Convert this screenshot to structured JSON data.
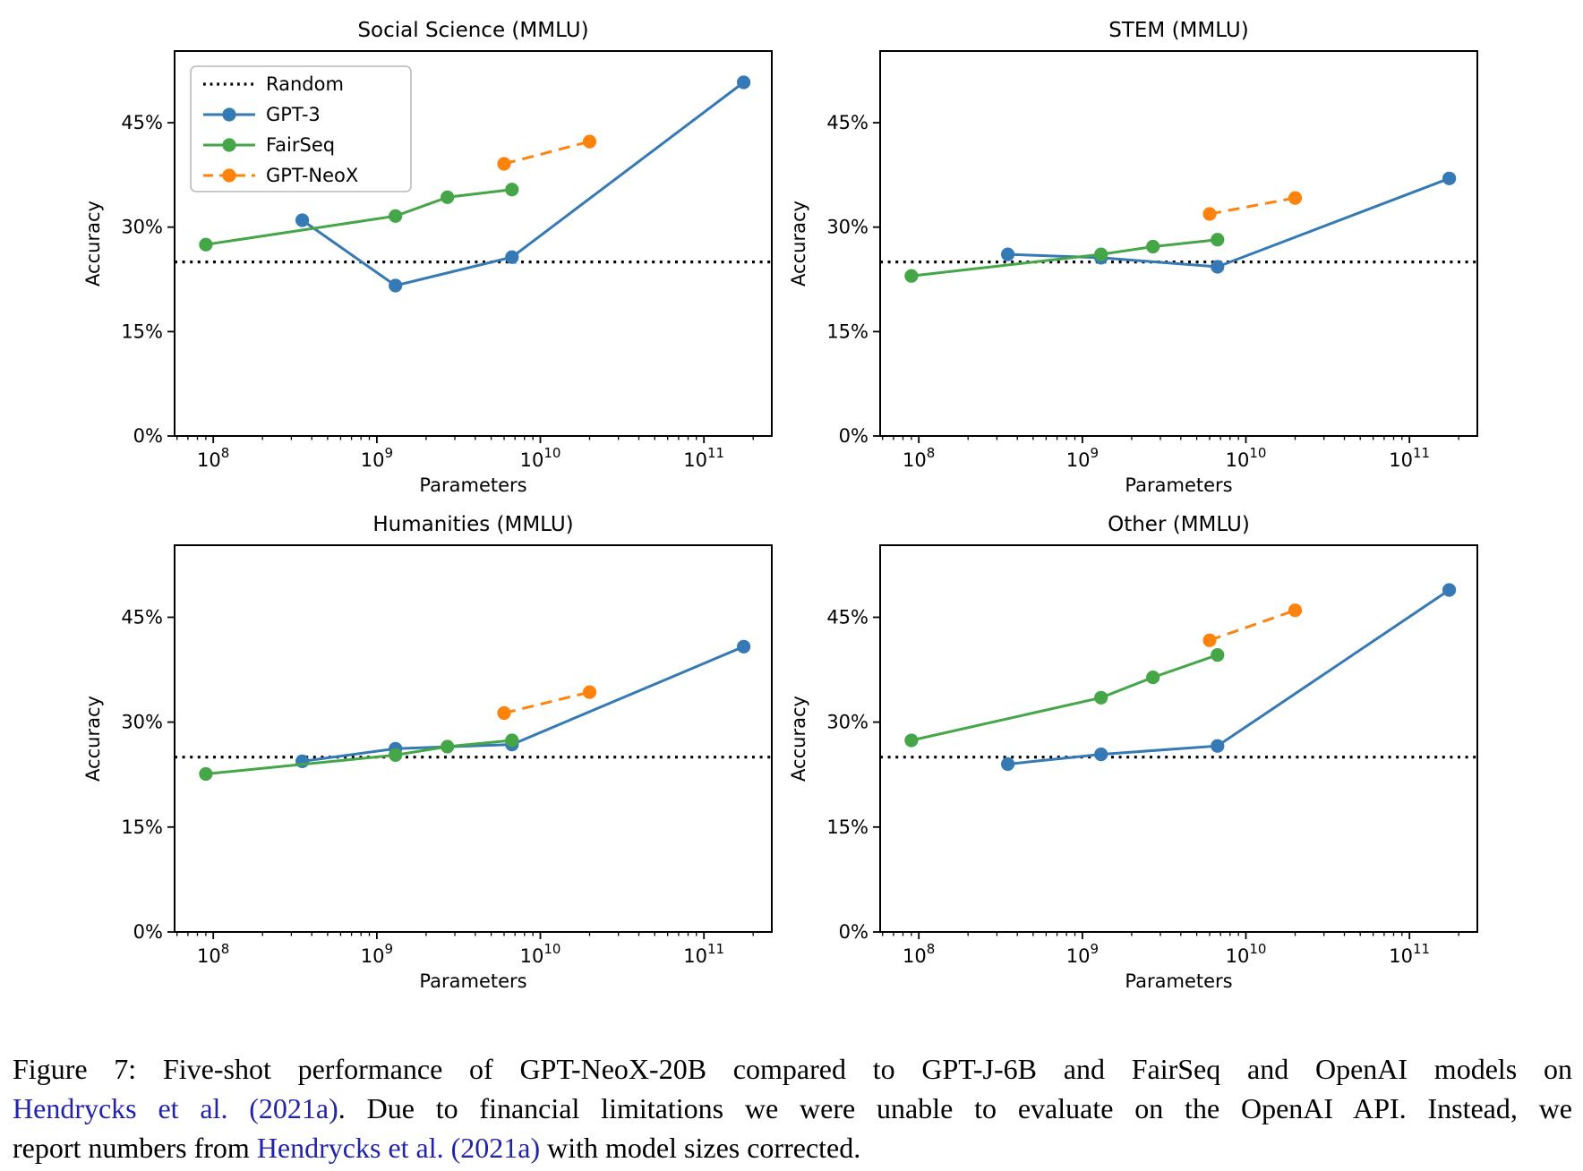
{
  "figure": {
    "background": "#ffffff",
    "colors": {
      "gpt3": "#3579b5",
      "fairseq": "#45a648",
      "gptneox": "#fd830d",
      "random": "#000000",
      "link": "#2222aa",
      "text": "#000000",
      "legend_border": "#b8b8b8"
    },
    "legend_items": [
      {
        "label": "Random",
        "key": "random"
      },
      {
        "label": "GPT-3",
        "key": "gpt3"
      },
      {
        "label": "FairSeq",
        "key": "fairseq"
      },
      {
        "label": "GPT-NeoX",
        "key": "gptneox"
      }
    ],
    "caption": {
      "lines": [
        {
          "justify": true,
          "parts": [
            {
              "text": "Figure 7: Five-shot performance of GPT-NeoX-20B compared to GPT-J-6B and FairSeq and OpenAI models on",
              "link": false
            }
          ]
        },
        {
          "justify": true,
          "parts": [
            {
              "text": "Hendrycks et al. (2021a)",
              "link": true
            },
            {
              "text": ". Due to financial limitations we were unable to evaluate on the OpenAI API. Instead, we",
              "link": false
            }
          ]
        },
        {
          "justify": false,
          "parts": [
            {
              "text": "report numbers from ",
              "link": false
            },
            {
              "text": "Hendrycks et al. (2021a)",
              "link": true
            },
            {
              "text": " with model sizes corrected.",
              "link": false
            }
          ]
        }
      ]
    }
  },
  "chart_data": [
    {
      "type": "line",
      "title": "Social Science (MMLU)",
      "xlabel": "Parameters",
      "ylabel": "Accuracy",
      "xscale": "log",
      "xlim": [
        58000000.0,
        260000000000.0
      ],
      "ylim": [
        0,
        55.3
      ],
      "xticks": [
        100000000.0,
        1000000000.0,
        10000000000.0,
        100000000000.0
      ],
      "xtick_labels": [
        "10^8",
        "10^9",
        "10^10",
        "10^11"
      ],
      "yticks": [
        0,
        15,
        30,
        45
      ],
      "ytick_labels": [
        "0%",
        "15%",
        "30%",
        "45%"
      ],
      "grid": false,
      "legend": true,
      "legend_position": "upper left",
      "random_baseline": 25,
      "series": [
        {
          "name": "GPT-3",
          "color_key": "gpt3",
          "style": "solid",
          "x": [
            350000000.0,
            1300000000.0,
            6700000000.0,
            175000000000.0
          ],
          "y": [
            31.0,
            21.6,
            25.7,
            50.8
          ]
        },
        {
          "name": "FairSeq",
          "color_key": "fairseq",
          "style": "solid",
          "x": [
            90000000.0,
            1300000000.0,
            2700000000.0,
            6700000000.0
          ],
          "y": [
            27.5,
            31.6,
            34.3,
            35.4
          ]
        },
        {
          "name": "GPT-NeoX",
          "color_key": "gptneox",
          "style": "dashed",
          "x": [
            6000000000.0,
            20000000000.0
          ],
          "y": [
            39.1,
            42.3
          ]
        }
      ]
    },
    {
      "type": "line",
      "title": "STEM (MMLU)",
      "xlabel": "Parameters",
      "ylabel": "Accuracy",
      "xscale": "log",
      "xlim": [
        58000000.0,
        260000000000.0
      ],
      "ylim": [
        0,
        55.3
      ],
      "xticks": [
        100000000.0,
        1000000000.0,
        10000000000.0,
        100000000000.0
      ],
      "xtick_labels": [
        "10^8",
        "10^9",
        "10^10",
        "10^11"
      ],
      "yticks": [
        0,
        15,
        30,
        45
      ],
      "ytick_labels": [
        "0%",
        "15%",
        "30%",
        "45%"
      ],
      "grid": false,
      "legend": false,
      "random_baseline": 25,
      "series": [
        {
          "name": "GPT-3",
          "color_key": "gpt3",
          "style": "solid",
          "x": [
            350000000.0,
            1300000000.0,
            6700000000.0,
            175000000000.0
          ],
          "y": [
            26.1,
            25.6,
            24.3,
            37.0
          ]
        },
        {
          "name": "FairSeq",
          "color_key": "fairseq",
          "style": "solid",
          "x": [
            90000000.0,
            1300000000.0,
            2700000000.0,
            6700000000.0
          ],
          "y": [
            23.0,
            26.1,
            27.2,
            28.2
          ]
        },
        {
          "name": "GPT-NeoX",
          "color_key": "gptneox",
          "style": "dashed",
          "x": [
            6000000000.0,
            20000000000.0
          ],
          "y": [
            31.9,
            34.2
          ]
        }
      ]
    },
    {
      "type": "line",
      "title": "Humanities (MMLU)",
      "xlabel": "Parameters",
      "ylabel": "Accuracy",
      "xscale": "log",
      "xlim": [
        58000000.0,
        260000000000.0
      ],
      "ylim": [
        0,
        55.3
      ],
      "xticks": [
        100000000.0,
        1000000000.0,
        10000000000.0,
        100000000000.0
      ],
      "xtick_labels": [
        "10^8",
        "10^9",
        "10^10",
        "10^11"
      ],
      "yticks": [
        0,
        15,
        30,
        45
      ],
      "ytick_labels": [
        "0%",
        "15%",
        "30%",
        "45%"
      ],
      "grid": false,
      "legend": false,
      "random_baseline": 25,
      "series": [
        {
          "name": "GPT-3",
          "color_key": "gpt3",
          "style": "solid",
          "x": [
            350000000.0,
            1300000000.0,
            6700000000.0,
            175000000000.0
          ],
          "y": [
            24.4,
            26.2,
            26.8,
            40.8
          ]
        },
        {
          "name": "FairSeq",
          "color_key": "fairseq",
          "style": "solid",
          "x": [
            90000000.0,
            1300000000.0,
            2700000000.0,
            6700000000.0
          ],
          "y": [
            22.6,
            25.3,
            26.5,
            27.4
          ]
        },
        {
          "name": "GPT-NeoX",
          "color_key": "gptneox",
          "style": "dashed",
          "x": [
            6000000000.0,
            20000000000.0
          ],
          "y": [
            31.3,
            34.3
          ]
        }
      ]
    },
    {
      "type": "line",
      "title": "Other (MMLU)",
      "xlabel": "Parameters",
      "ylabel": "Accuracy",
      "xscale": "log",
      "xlim": [
        58000000.0,
        260000000000.0
      ],
      "ylim": [
        0,
        55.3
      ],
      "xticks": [
        100000000.0,
        1000000000.0,
        10000000000.0,
        100000000000.0
      ],
      "xtick_labels": [
        "10^8",
        "10^9",
        "10^10",
        "10^11"
      ],
      "yticks": [
        0,
        15,
        30,
        45
      ],
      "ytick_labels": [
        "0%",
        "15%",
        "30%",
        "45%"
      ],
      "grid": false,
      "legend": false,
      "random_baseline": 25,
      "series": [
        {
          "name": "GPT-3",
          "color_key": "gpt3",
          "style": "solid",
          "x": [
            350000000.0,
            1300000000.0,
            6700000000.0,
            175000000000.0
          ],
          "y": [
            24.0,
            25.4,
            26.6,
            48.9
          ]
        },
        {
          "name": "FairSeq",
          "color_key": "fairseq",
          "style": "solid",
          "x": [
            90000000.0,
            1300000000.0,
            2700000000.0,
            6700000000.0
          ],
          "y": [
            27.4,
            33.5,
            36.4,
            39.6
          ]
        },
        {
          "name": "GPT-NeoX",
          "color_key": "gptneox",
          "style": "dashed",
          "x": [
            6000000000.0,
            20000000000.0
          ],
          "y": [
            41.7,
            46.0
          ]
        }
      ]
    }
  ]
}
